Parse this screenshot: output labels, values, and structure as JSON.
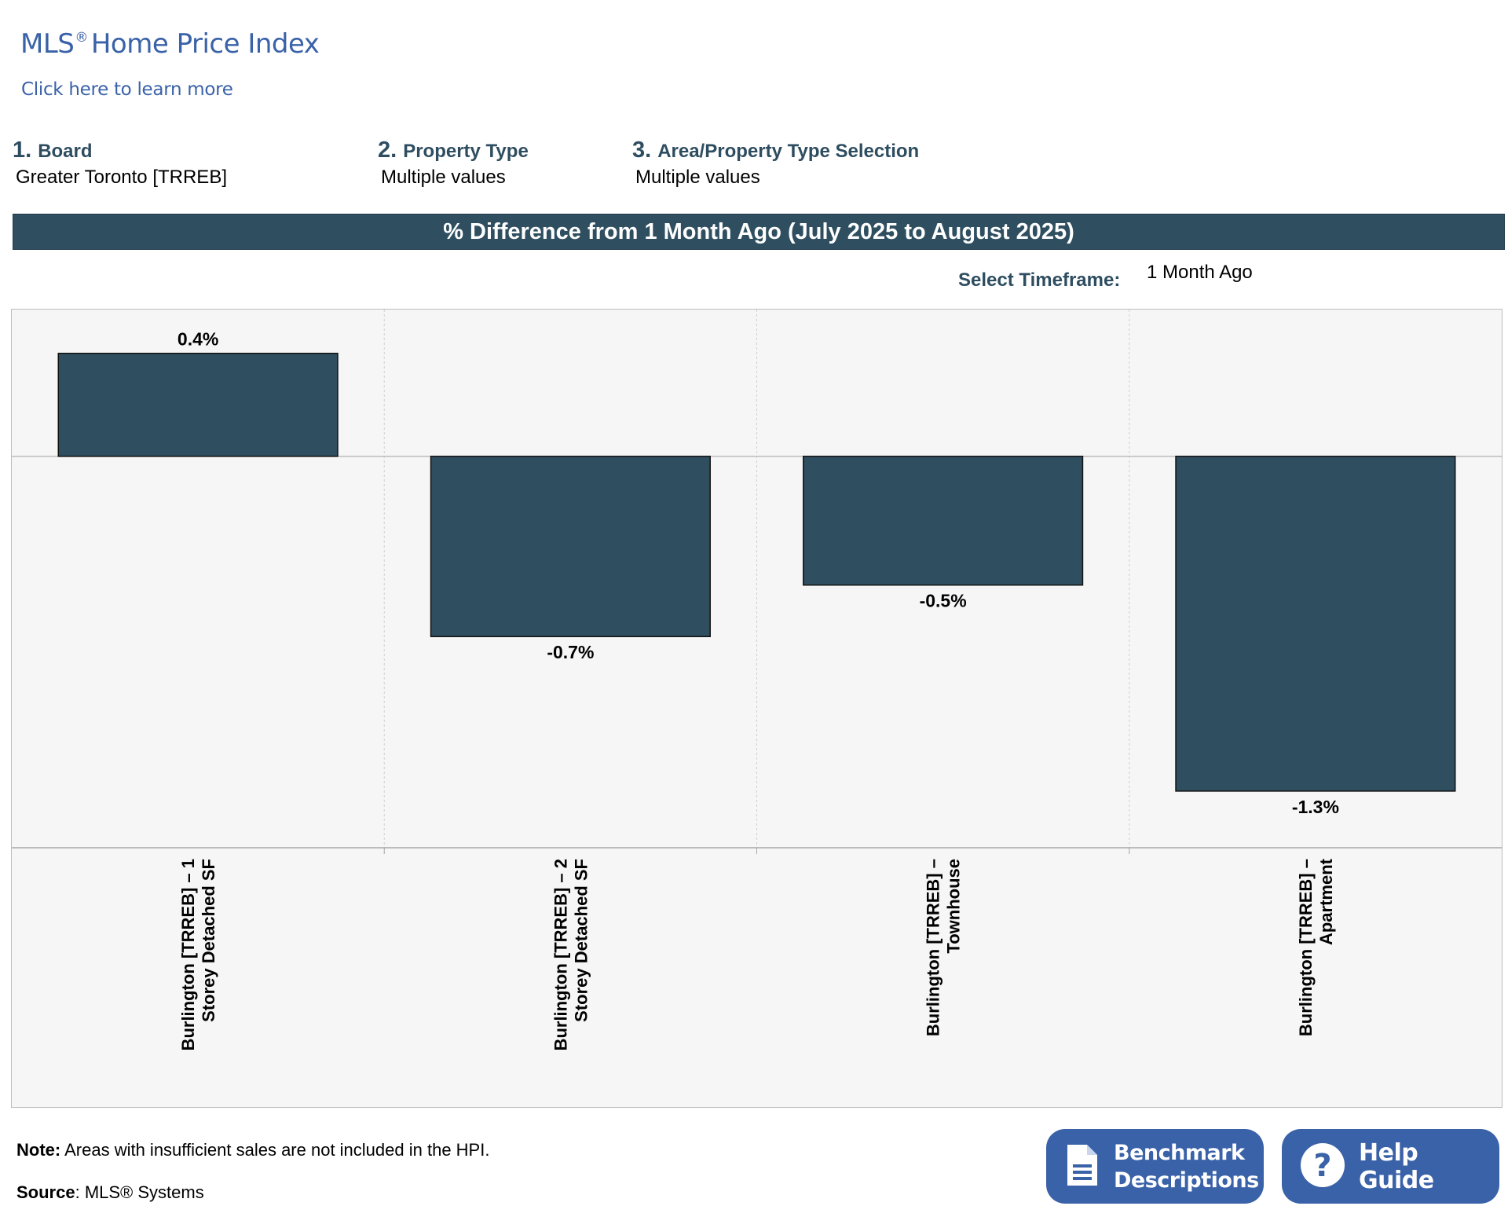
{
  "header": {
    "title": "MLS",
    "title_reg": "®",
    "title_rest": "Home Price Index",
    "learn_more": "Click here to learn more"
  },
  "filters": [
    {
      "number": "1.",
      "label": "Board",
      "value": "Greater Toronto [TRREB]"
    },
    {
      "number": "2.",
      "label": "Property Type",
      "value": "Multiple values"
    },
    {
      "number": "3.",
      "label": "Area/Property Type Selection",
      "value": "Multiple values"
    }
  ],
  "banner": "% Difference from 1 Month Ago (July 2025 to August 2025)",
  "timeframe": {
    "label": "Select Timeframe:",
    "value": "1 Month Ago"
  },
  "chart_data": {
    "type": "bar",
    "categories": [
      [
        "Burlington [TRREB] – 1",
        "Storey Detached SF"
      ],
      [
        "Burlington [TRREB] – 2",
        "Storey Detached SF"
      ],
      [
        "Burlington [TRREB] –",
        "Townhouse"
      ],
      [
        "Burlington [TRREB] –",
        "Apartment"
      ]
    ],
    "values": [
      0.4,
      -0.7,
      -0.5,
      -1.3
    ],
    "data_labels": [
      "0.4%",
      "-0.7%",
      "-0.5%",
      "-1.3%"
    ],
    "unit": "%",
    "ylim": [
      -1.52,
      0.57
    ],
    "bar_color": "#2f4f61",
    "grid": "vertical dashed"
  },
  "footer": {
    "note_label": "Note:",
    "note_text": " Areas with insufficient sales are not included in the HPI.",
    "source_label": "Source",
    "source_text": ": MLS® Systems"
  },
  "buttons": {
    "benchmark_line1": "Benchmark",
    "benchmark_line2": "Descriptions",
    "help": "Help Guide",
    "benchmark_icon": "document-icon",
    "help_icon": "question-circle-icon"
  }
}
